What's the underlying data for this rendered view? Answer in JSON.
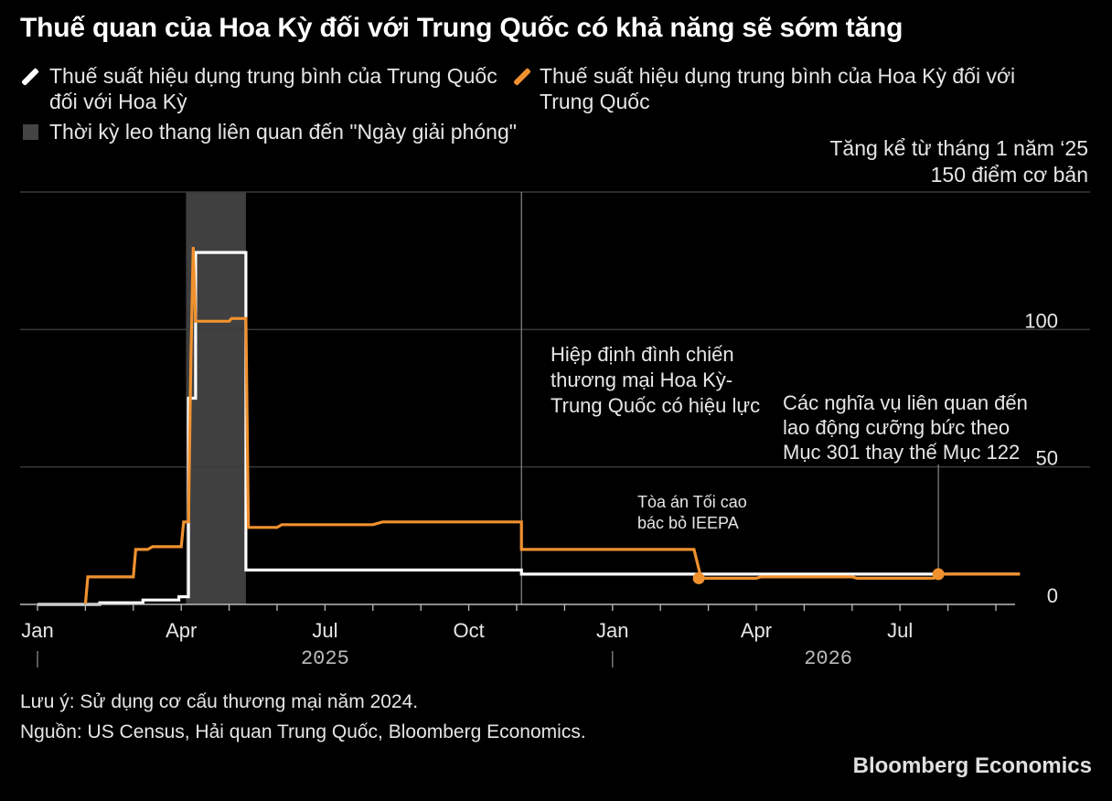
{
  "title": "Thuế quan của Hoa Kỳ đối với Trung Quốc có khả năng sẽ sớm tăng",
  "legend": {
    "china_rate": "Thuế suất hiệu dụng trung bình của Trung Quốc đối với Hoa Kỳ",
    "china_rate_line1": "Thuế suất hiệu dụng trung bình của Trung Quốc",
    "china_rate_line2": "đối với Hoa Kỳ",
    "us_rate": "Thuế suất hiệu dụng trung bình của Hoa Kỳ đối với Trung Quốc",
    "us_rate_line1": "Thuế suất hiệu dụng trung bình của Hoa Kỳ đối với",
    "us_rate_line2": "Trung Quốc",
    "escalation": "Thời kỳ leo thang liên quan đến \"Ngày giải phóng\""
  },
  "unit": {
    "line1": "Tăng kể từ tháng 1 năm ‘25",
    "line2": "150 điểm cơ bản"
  },
  "notes": {
    "note": "Lưu ý: Sử dụng cơ cấu thương mại năm 2024.",
    "source": "Nguồn: US Census, Hải quan Trung Quốc, Bloomberg Economics."
  },
  "brand": "Bloomberg Economics",
  "colors": {
    "china": "#ffffff",
    "us": "#f0912f",
    "shade": "#404040",
    "grid": "#3a3a3a"
  },
  "chart_data": {
    "type": "line",
    "y_ticks": [
      0,
      50,
      100
    ],
    "y_tick_labels": [
      "0",
      "50",
      "100"
    ],
    "ylim": [
      0,
      150
    ],
    "x_ticks": [
      {
        "label": "Jan",
        "m": 0
      },
      {
        "label": "Apr",
        "m": 3
      },
      {
        "label": "Jul",
        "m": 6
      },
      {
        "label": "Oct",
        "m": 9
      },
      {
        "label": "Jan",
        "m": 12
      },
      {
        "label": "Apr",
        "m": 15
      },
      {
        "label": "Jul",
        "m": 18
      }
    ],
    "years": [
      {
        "label": "2025",
        "m": 6
      },
      {
        "label": "2026",
        "m": 16.5
      }
    ],
    "xlim": [
      0,
      21
    ],
    "shaded_period": [
      3.1,
      4.35
    ],
    "series": [
      {
        "name": "Thuế suất hiệu dụng trung bình của Trung Quốc đối với Hoa Kỳ",
        "key": "china",
        "points": [
          [
            0,
            0
          ],
          [
            1.3,
            0
          ],
          [
            1.3,
            0.6
          ],
          [
            2.2,
            0.6
          ],
          [
            2.2,
            1.6
          ],
          [
            2.95,
            1.6
          ],
          [
            2.95,
            2.8
          ],
          [
            3.15,
            2.8
          ],
          [
            3.15,
            75
          ],
          [
            3.3,
            75
          ],
          [
            3.3,
            128
          ],
          [
            4.35,
            128
          ],
          [
            4.35,
            12.5
          ],
          [
            10.1,
            12.5
          ],
          [
            10.1,
            11
          ],
          [
            20.5,
            11
          ]
        ]
      },
      {
        "name": "Thuế suất hiệu dụng trung bình của Hoa Kỳ đối với Trung Quốc",
        "key": "us",
        "points": [
          [
            1,
            0
          ],
          [
            1.05,
            10
          ],
          [
            2,
            10
          ],
          [
            2.05,
            20
          ],
          [
            2.3,
            20
          ],
          [
            2.4,
            21
          ],
          [
            3,
            21
          ],
          [
            3.05,
            30
          ],
          [
            3.15,
            30
          ],
          [
            3.2,
            88
          ],
          [
            3.25,
            130
          ],
          [
            3.3,
            103
          ],
          [
            4,
            103
          ],
          [
            4.05,
            104
          ],
          [
            4.35,
            104
          ],
          [
            4.4,
            28
          ],
          [
            5,
            28
          ],
          [
            5.1,
            29
          ],
          [
            7,
            29
          ],
          [
            7.2,
            30
          ],
          [
            10.1,
            30
          ],
          [
            10.1,
            20
          ],
          [
            13.7,
            20
          ],
          [
            13.85,
            9.5
          ],
          [
            15,
            9.5
          ],
          [
            15.1,
            10
          ],
          [
            17,
            10
          ],
          [
            17.1,
            9.5
          ],
          [
            18.7,
            9.5
          ],
          [
            18.8,
            11
          ],
          [
            20.5,
            11
          ]
        ]
      }
    ],
    "annotations": [
      {
        "key": "truce",
        "lines": [
          "Hiệp định đình chiến",
          "thương mại Hoa Kỳ-",
          "Trung Quốc có hiệu lực"
        ],
        "m": 10.1
      },
      {
        "key": "court",
        "lines": [
          "Tòa án Tối cao",
          "bác bỏ IEEPA"
        ],
        "m": 13.8
      },
      {
        "key": "sec301",
        "lines": [
          "Các nghĩa vụ liên quan đến",
          "lao động cưỡng bức theo",
          "Mục 301 thay thế Mục 122"
        ],
        "m": 18.8
      }
    ],
    "markers": [
      {
        "series": "us",
        "m": 13.8,
        "v": 9.5
      },
      {
        "series": "us",
        "m": 18.8,
        "v": 11
      }
    ]
  }
}
